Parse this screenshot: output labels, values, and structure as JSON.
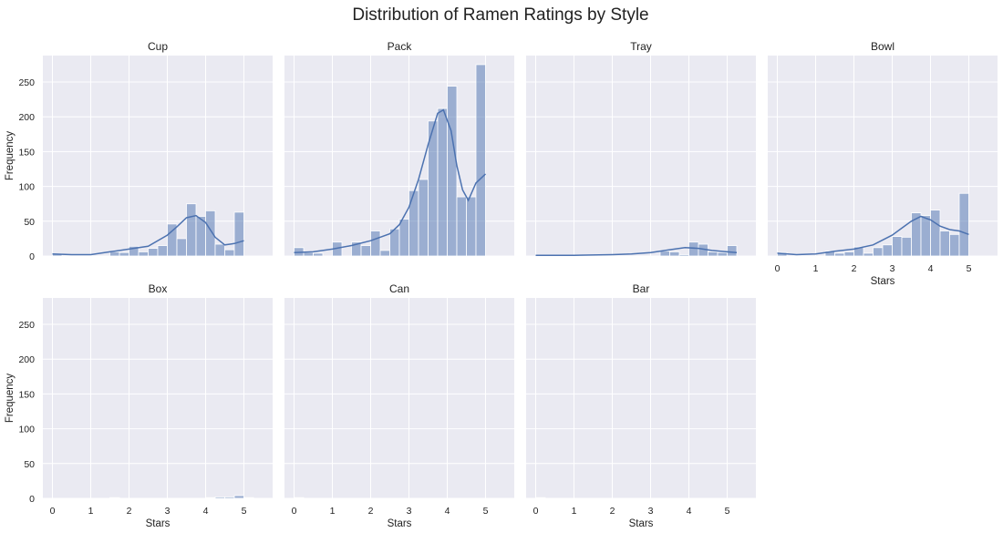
{
  "chart_data": {
    "type": "bar",
    "title": "Distribution of Ramen Ratings by Style",
    "xlabel": "Stars",
    "ylabel": "Frequency",
    "xlim": [
      -0.25,
      5.75
    ],
    "ylim": [
      0,
      288
    ],
    "x_ticks": [
      0,
      1,
      2,
      3,
      4,
      5
    ],
    "y_ticks": [
      0,
      50,
      100,
      150,
      200,
      250
    ],
    "grid": true,
    "bin_width": 0.25,
    "colors": {
      "bar": "#4c72b0",
      "kde": "#4c72b0",
      "panel_bg": "#eaeaf2",
      "grid": "#ffffff"
    },
    "facets": [
      {
        "name": "Cup",
        "bins": [
          {
            "x0": 0.0,
            "count": 3
          },
          {
            "x0": 1.5,
            "count": 6
          },
          {
            "x0": 1.75,
            "count": 5
          },
          {
            "x0": 2.0,
            "count": 14
          },
          {
            "x0": 2.25,
            "count": 6
          },
          {
            "x0": 2.5,
            "count": 11
          },
          {
            "x0": 2.75,
            "count": 15
          },
          {
            "x0": 3.0,
            "count": 46
          },
          {
            "x0": 3.25,
            "count": 25
          },
          {
            "x0": 3.5,
            "count": 75
          },
          {
            "x0": 3.75,
            "count": 57
          },
          {
            "x0": 4.0,
            "count": 65
          },
          {
            "x0": 4.25,
            "count": 17
          },
          {
            "x0": 4.5,
            "count": 9
          },
          {
            "x0": 4.75,
            "count": 63
          }
        ],
        "kde": [
          [
            0,
            3
          ],
          [
            0.5,
            2
          ],
          [
            1,
            2
          ],
          [
            1.5,
            6
          ],
          [
            2,
            10
          ],
          [
            2.5,
            14
          ],
          [
            3,
            30
          ],
          [
            3.25,
            42
          ],
          [
            3.5,
            55
          ],
          [
            3.75,
            58
          ],
          [
            4,
            48
          ],
          [
            4.25,
            27
          ],
          [
            4.5,
            16
          ],
          [
            4.75,
            18
          ],
          [
            5,
            22
          ]
        ]
      },
      {
        "name": "Pack",
        "bins": [
          {
            "x0": 0.0,
            "count": 12
          },
          {
            "x0": 0.25,
            "count": 5
          },
          {
            "x0": 0.5,
            "count": 4
          },
          {
            "x0": 1.0,
            "count": 20
          },
          {
            "x0": 1.5,
            "count": 20
          },
          {
            "x0": 1.75,
            "count": 15
          },
          {
            "x0": 2.0,
            "count": 36
          },
          {
            "x0": 2.25,
            "count": 8
          },
          {
            "x0": 2.5,
            "count": 39
          },
          {
            "x0": 2.75,
            "count": 53
          },
          {
            "x0": 3.0,
            "count": 94
          },
          {
            "x0": 3.25,
            "count": 110
          },
          {
            "x0": 3.5,
            "count": 194
          },
          {
            "x0": 3.75,
            "count": 212
          },
          {
            "x0": 4.0,
            "count": 244
          },
          {
            "x0": 4.25,
            "count": 85
          },
          {
            "x0": 4.5,
            "count": 85
          },
          {
            "x0": 4.75,
            "count": 275
          }
        ],
        "kde": [
          [
            0,
            5
          ],
          [
            0.5,
            6
          ],
          [
            1,
            10
          ],
          [
            1.5,
            15
          ],
          [
            2,
            22
          ],
          [
            2.5,
            32
          ],
          [
            2.75,
            45
          ],
          [
            3,
            70
          ],
          [
            3.25,
            110
          ],
          [
            3.5,
            160
          ],
          [
            3.75,
            205
          ],
          [
            3.9,
            210
          ],
          [
            4.1,
            180
          ],
          [
            4.25,
            130
          ],
          [
            4.4,
            95
          ],
          [
            4.55,
            80
          ],
          [
            4.75,
            105
          ],
          [
            5,
            118
          ]
        ]
      },
      {
        "name": "Tray",
        "bins": [
          {
            "x0": 3.25,
            "count": 7
          },
          {
            "x0": 3.5,
            "count": 6
          },
          {
            "x0": 3.75,
            "count": 2
          },
          {
            "x0": 4.0,
            "count": 20
          },
          {
            "x0": 4.25,
            "count": 17
          },
          {
            "x0": 4.5,
            "count": 6
          },
          {
            "x0": 4.75,
            "count": 5
          },
          {
            "x0": 5.0,
            "count": 15
          }
        ],
        "kde": [
          [
            0,
            1
          ],
          [
            1,
            1
          ],
          [
            2,
            2
          ],
          [
            2.5,
            3
          ],
          [
            3,
            5
          ],
          [
            3.5,
            9
          ],
          [
            3.9,
            12
          ],
          [
            4.25,
            11
          ],
          [
            4.6,
            8
          ],
          [
            5,
            6
          ],
          [
            5.25,
            5
          ]
        ]
      },
      {
        "name": "Bowl",
        "bins": [
          {
            "x0": 0.0,
            "count": 5
          },
          {
            "x0": 1.25,
            "count": 7
          },
          {
            "x0": 1.5,
            "count": 4
          },
          {
            "x0": 1.75,
            "count": 6
          },
          {
            "x0": 2.0,
            "count": 13
          },
          {
            "x0": 2.25,
            "count": 4
          },
          {
            "x0": 2.5,
            "count": 12
          },
          {
            "x0": 2.75,
            "count": 16
          },
          {
            "x0": 3.0,
            "count": 28
          },
          {
            "x0": 3.25,
            "count": 27
          },
          {
            "x0": 3.5,
            "count": 62
          },
          {
            "x0": 3.75,
            "count": 58
          },
          {
            "x0": 4.0,
            "count": 66
          },
          {
            "x0": 4.25,
            "count": 36
          },
          {
            "x0": 4.5,
            "count": 31
          },
          {
            "x0": 4.75,
            "count": 90
          }
        ],
        "kde": [
          [
            0,
            4
          ],
          [
            0.5,
            2
          ],
          [
            1,
            3
          ],
          [
            1.5,
            7
          ],
          [
            2,
            10
          ],
          [
            2.5,
            16
          ],
          [
            3,
            30
          ],
          [
            3.25,
            40
          ],
          [
            3.5,
            50
          ],
          [
            3.75,
            57
          ],
          [
            4,
            52
          ],
          [
            4.25,
            43
          ],
          [
            4.5,
            38
          ],
          [
            4.75,
            36
          ],
          [
            5,
            31
          ]
        ]
      },
      {
        "name": "Box",
        "bins": [
          {
            "x0": 1.5,
            "count": 1
          },
          {
            "x0": 4.0,
            "count": 1
          },
          {
            "x0": 4.25,
            "count": 2
          },
          {
            "x0": 4.5,
            "count": 2
          },
          {
            "x0": 4.75,
            "count": 4
          },
          {
            "x0": 5.0,
            "count": 1
          }
        ],
        "kde": []
      },
      {
        "name": "Can",
        "bins": [
          {
            "x0": 0.0,
            "count": 1
          }
        ],
        "kde": []
      },
      {
        "name": "Bar",
        "bins": [
          {
            "x0": 0.0,
            "count": 1
          }
        ],
        "kde": []
      }
    ]
  }
}
